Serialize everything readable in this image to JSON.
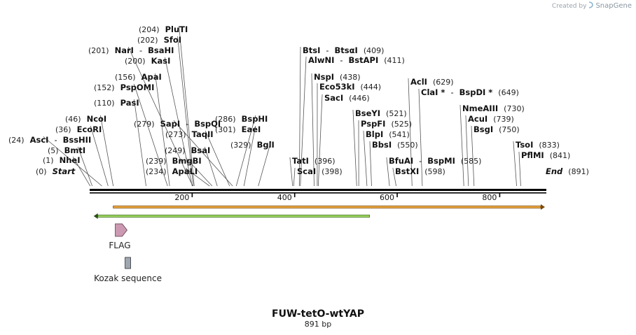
{
  "map": {
    "name": "FUW-tetO-wtYAP",
    "length_label": "891 bp",
    "length_bp": 891,
    "credit_prefix": "Created by",
    "credit_brand": "SnapGene",
    "ruler_ticks": [
      {
        "bp": 200,
        "label": "200"
      },
      {
        "bp": 400,
        "label": "400"
      },
      {
        "bp": 600,
        "label": "600"
      },
      {
        "bp": 800,
        "label": "800"
      }
    ],
    "sites": [
      {
        "pos": "(204)",
        "bp": 204,
        "names": [
          "PluTI"
        ]
      },
      {
        "pos": "(202)",
        "bp": 202,
        "names": [
          "SfoI"
        ]
      },
      {
        "pos": "(201)",
        "bp": 201,
        "names": [
          "NarI",
          "BsaHI"
        ]
      },
      {
        "pos": "(200)",
        "bp": 200,
        "names": [
          "KasI"
        ]
      },
      {
        "pos": "(156)",
        "bp": 156,
        "names": [
          "ApaI"
        ]
      },
      {
        "pos": "(152)",
        "bp": 152,
        "names": [
          "PspOMI"
        ]
      },
      {
        "pos": "(110)",
        "bp": 110,
        "names": [
          "PasI"
        ]
      },
      {
        "pos": "(46)",
        "bp": 46,
        "names": [
          "NcoI"
        ]
      },
      {
        "pos": "(36)",
        "bp": 36,
        "names": [
          "EcoRI"
        ]
      },
      {
        "pos": "(24)",
        "bp": 24,
        "names": [
          "AscI",
          "BssHII"
        ]
      },
      {
        "pos": "(5)",
        "bp": 5,
        "names": [
          "BmtI"
        ]
      },
      {
        "pos": "(1)",
        "bp": 1,
        "names": [
          "NheI"
        ]
      },
      {
        "pos": "(0)",
        "bp": 0,
        "names": [
          "Start"
        ],
        "italic": true
      },
      {
        "pos": "(279)",
        "bp": 279,
        "names": [
          "SapI",
          "BspQI"
        ]
      },
      {
        "pos": "(273)",
        "bp": 273,
        "names": [
          "TaqII"
        ]
      },
      {
        "pos": "(249)",
        "bp": 249,
        "names": [
          "BsaI"
        ]
      },
      {
        "pos": "(239)",
        "bp": 239,
        "names": [
          "BmgBI"
        ]
      },
      {
        "pos": "(234)",
        "bp": 234,
        "names": [
          "ApaLI"
        ]
      },
      {
        "pos": "(286)",
        "bp": 286,
        "names": [
          "BspHI"
        ]
      },
      {
        "pos": "(301)",
        "bp": 301,
        "names": [
          "EaeI"
        ]
      },
      {
        "pos": "(329)",
        "bp": 329,
        "names": [
          "BglI"
        ]
      },
      {
        "pos": "(409)",
        "bp": 409,
        "names": [
          "BtsI",
          "BtsαI"
        ]
      },
      {
        "pos": "(411)",
        "bp": 411,
        "names": [
          "AlwNI",
          "BstAPI"
        ]
      },
      {
        "pos": "(438)",
        "bp": 438,
        "names": [
          "NspI"
        ]
      },
      {
        "pos": "(444)",
        "bp": 444,
        "names": [
          "Eco53kI"
        ]
      },
      {
        "pos": "(446)",
        "bp": 446,
        "names": [
          "SacI"
        ]
      },
      {
        "pos": "(396)",
        "bp": 396,
        "names": [
          "TatI"
        ]
      },
      {
        "pos": "(398)",
        "bp": 398,
        "names": [
          "ScaI"
        ]
      },
      {
        "pos": "(521)",
        "bp": 521,
        "names": [
          "BseYI"
        ]
      },
      {
        "pos": "(525)",
        "bp": 525,
        "names": [
          "PspFI"
        ]
      },
      {
        "pos": "(541)",
        "bp": 541,
        "names": [
          "BlpI"
        ]
      },
      {
        "pos": "(550)",
        "bp": 550,
        "names": [
          "BbsI"
        ]
      },
      {
        "pos": "(585)",
        "bp": 585,
        "names": [
          "BfuAI",
          "BspMI"
        ]
      },
      {
        "pos": "(598)",
        "bp": 598,
        "names": [
          "BstXI"
        ]
      },
      {
        "pos": "(629)",
        "bp": 629,
        "names": [
          "AclI"
        ]
      },
      {
        "pos": "(649)",
        "bp": 649,
        "names": [
          "ClaI *",
          "BspDI *"
        ]
      },
      {
        "pos": "(730)",
        "bp": 730,
        "names": [
          "NmeAIII"
        ]
      },
      {
        "pos": "(739)",
        "bp": 739,
        "names": [
          "AcuI"
        ]
      },
      {
        "pos": "(750)",
        "bp": 750,
        "names": [
          "BsgI"
        ]
      },
      {
        "pos": "(833)",
        "bp": 833,
        "names": [
          "TsoI"
        ]
      },
      {
        "pos": "(841)",
        "bp": 841,
        "names": [
          "PflMI"
        ]
      },
      {
        "pos": "(891)",
        "bp": 891,
        "names": [
          "End"
        ],
        "italic": true
      }
    ],
    "features": [
      {
        "name": "orange-orf",
        "start_bp": 46,
        "end_bp": 891,
        "direction": "forward",
        "fill": "#f5b24a",
        "stroke": "#7a4a10"
      },
      {
        "name": "green-orf",
        "start_bp": 5,
        "end_bp": 546,
        "direction": "reverse",
        "fill": "#a6de6a",
        "stroke": "#3d6b1c"
      },
      {
        "name": "FLAG",
        "label": "FLAG",
        "start_bp": 50,
        "end_bp": 73,
        "direction": "forward",
        "fill": "#cc99b2",
        "stroke": "#5a3a4a"
      },
      {
        "name": "Kozak sequence",
        "label": "Kozak sequence",
        "start_bp": 39,
        "end_bp": 49,
        "direction": "none",
        "fill": "#9ea7b0",
        "stroke": "#333333"
      }
    ],
    "colors": {
      "backbone": "#000000",
      "line": "#333333"
    }
  }
}
